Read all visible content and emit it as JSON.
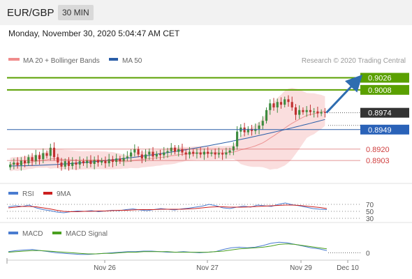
{
  "header": {
    "symbol": "EUR/GBP",
    "timeframe": "30 MIN"
  },
  "timestamp": "Monday, November 30, 2020 5:04:47 AM CET",
  "legend": {
    "bb": "MA 20 + Bollinger Bands",
    "ma50": "MA 50",
    "copyright": "Research © 2020 Trading Central"
  },
  "colors": {
    "up": "#3d8c40",
    "down": "#c03030",
    "resistance": "#5aa000",
    "support": "#2a5ea8",
    "level_red": "#d04040",
    "arrow": "#2f6db0",
    "ma50": "#2a5ea8",
    "bb": "#f0a0a0"
  },
  "chart_data": [
    {
      "type": "candlestick",
      "title": "EUR/GBP",
      "ylim": [
        0.887,
        0.904
      ],
      "x_ticks": [
        "Nov 26",
        "Nov 27",
        "Nov 29",
        "Dec 10"
      ],
      "levels": [
        {
          "label": "0.9026",
          "value": 0.9026,
          "kind": "resistance"
        },
        {
          "label": "0.9008",
          "value": 0.9008,
          "kind": "resistance"
        },
        {
          "label": "0.8974",
          "value": 0.8974,
          "kind": "last"
        },
        {
          "label": "0.8949",
          "value": 0.8949,
          "kind": "support"
        },
        {
          "label": "0.8920",
          "value": 0.892,
          "kind": "red"
        },
        {
          "label": "0.8903",
          "value": 0.8903,
          "kind": "red"
        }
      ],
      "closes": [
        0.8897,
        0.89,
        0.8896,
        0.8903,
        0.8899,
        0.8908,
        0.8902,
        0.8911,
        0.8905,
        0.8914,
        0.891,
        0.8922,
        0.8908,
        0.89,
        0.8894,
        0.8902,
        0.8895,
        0.89,
        0.8897,
        0.8902,
        0.8899,
        0.8903,
        0.8898,
        0.8904,
        0.89,
        0.8903,
        0.8899,
        0.8905,
        0.8901,
        0.8906,
        0.8902,
        0.8907,
        0.8909,
        0.8915,
        0.892,
        0.8912,
        0.8906,
        0.8912,
        0.8916,
        0.8909,
        0.8913,
        0.8911,
        0.8915,
        0.8917,
        0.8922,
        0.8916,
        0.892,
        0.8915,
        0.8912,
        0.8916,
        0.8913,
        0.8915,
        0.8912,
        0.8916,
        0.8913,
        0.8915,
        0.8912,
        0.8914,
        0.8912,
        0.8915,
        0.8918,
        0.8924,
        0.8946,
        0.8952,
        0.8945,
        0.895,
        0.8947,
        0.895,
        0.8955,
        0.8962,
        0.8978,
        0.8988,
        0.8982,
        0.899,
        0.8986,
        0.8994,
        0.899,
        0.8982,
        0.8971,
        0.8978,
        0.8975,
        0.8978,
        0.8975,
        0.8976,
        0.8973,
        0.8975,
        0.8974
      ],
      "ma50_ends": [
        0.8895,
        0.8964
      ],
      "arrow_target": 0.9026
    },
    {
      "type": "line",
      "legend": [
        "RSI",
        "9MA"
      ],
      "ylim": [
        20,
        80
      ],
      "y_ticks": [
        "70",
        "50",
        "30"
      ],
      "series": [
        {
          "name": "RSI",
          "values": [
            63,
            66,
            64,
            68,
            60,
            55,
            52,
            48,
            46,
            49,
            51,
            50,
            52,
            49,
            51,
            53,
            52,
            55,
            57,
            54,
            52,
            55,
            58,
            56,
            54,
            57,
            59,
            62,
            65,
            70,
            66,
            60,
            58,
            62,
            65,
            62,
            68,
            66,
            64,
            70,
            74,
            69,
            66,
            62,
            58,
            56,
            55
          ]
        },
        {
          "name": "9MA",
          "values": [
            60,
            62,
            64,
            64,
            63,
            60,
            57,
            53,
            50,
            49,
            49,
            50,
            50,
            51,
            51,
            52,
            53,
            53,
            54,
            55,
            55,
            55,
            56,
            56,
            56,
            56,
            57,
            58,
            60,
            62,
            63,
            63,
            62,
            62,
            62,
            63,
            64,
            65,
            66,
            67,
            68,
            68,
            67,
            65,
            63,
            61,
            58
          ]
        }
      ]
    },
    {
      "type": "line",
      "legend": [
        "MACD",
        "MACD Signal"
      ],
      "ylim": [
        -0.0012,
        0.0028
      ],
      "y_ticks": [
        "0"
      ],
      "series": [
        {
          "name": "MACD",
          "values": [
            0.0002,
            0.0004,
            0.0005,
            0.0006,
            0.0004,
            0.0002,
            0.0,
            -0.0001,
            -0.0002,
            -0.0003,
            -0.0003,
            -0.0002,
            -0.0001,
            0.0,
            0.0001,
            0.0002,
            0.0002,
            0.0003,
            0.0003,
            0.0002,
            0.0001,
            0.0001,
            0.0002,
            0.0001,
            0.0,
            0.0001,
            0.0002,
            0.0006,
            0.0009,
            0.001,
            0.0009,
            0.001,
            0.0013,
            0.0017,
            0.0019,
            0.0018,
            0.0015,
            0.0012,
            0.0009,
            0.0007,
            0.0004
          ]
        },
        {
          "name": "MACD Signal",
          "values": [
            0.0001,
            0.0002,
            0.0003,
            0.0004,
            0.0004,
            0.0003,
            0.0002,
            0.0001,
            0.0,
            -0.0001,
            -0.0002,
            -0.0002,
            -0.0001,
            -0.0001,
            0.0,
            0.0001,
            0.0001,
            0.0002,
            0.0002,
            0.0002,
            0.0002,
            0.0001,
            0.0001,
            0.0001,
            0.0001,
            0.0001,
            0.0002,
            0.0003,
            0.0005,
            0.0007,
            0.0008,
            0.0009,
            0.001,
            0.0012,
            0.0015,
            0.0016,
            0.0015,
            0.0013,
            0.0011,
            0.0009,
            0.0007
          ]
        }
      ]
    }
  ]
}
